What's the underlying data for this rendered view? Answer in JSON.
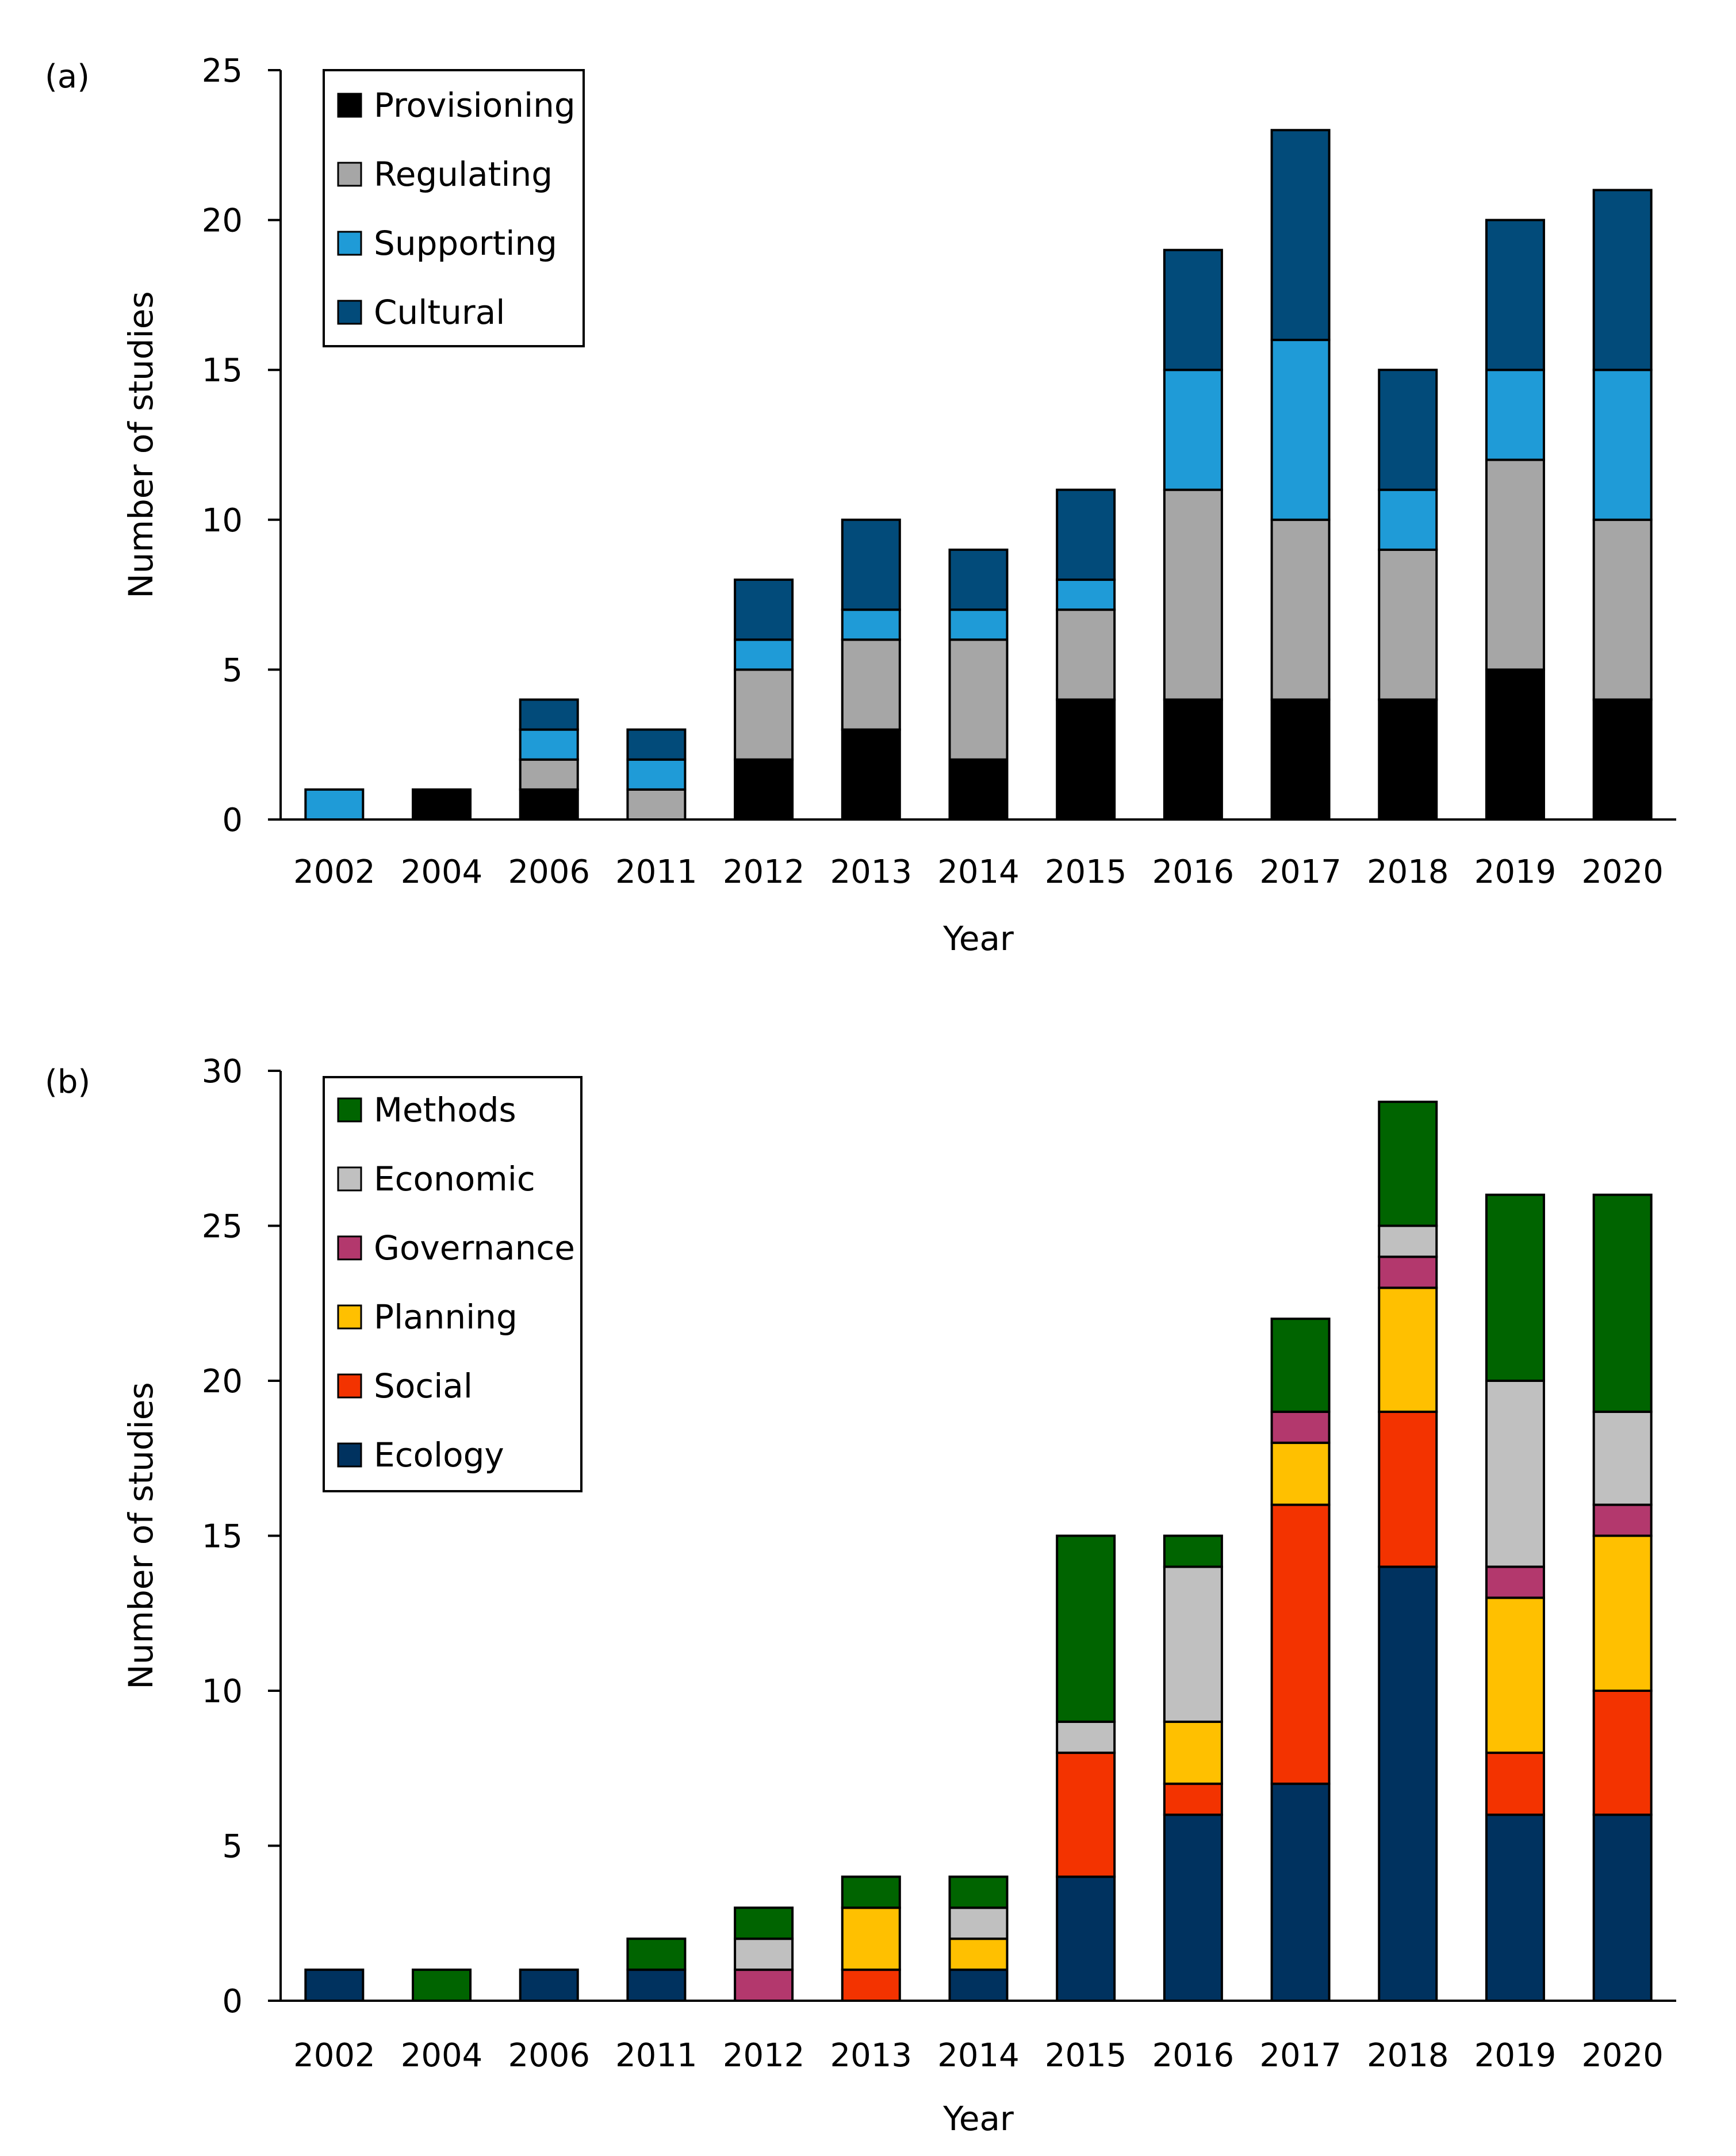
{
  "chart_data": [
    {
      "panel_label": "(a)",
      "type": "bar",
      "stacked": true,
      "title": "",
      "xlabel": "Year",
      "ylabel": "Number of studies",
      "ylim": [
        0,
        25
      ],
      "yticks": [
        0,
        5,
        10,
        15,
        20,
        25
      ],
      "grid": false,
      "legend_position": "top-left",
      "categories": [
        "2002",
        "2004",
        "2006",
        "2011",
        "2012",
        "2013",
        "2014",
        "2015",
        "2016",
        "2017",
        "2018",
        "2019",
        "2020"
      ],
      "series": [
        {
          "name": "Provisioning",
          "color": "#000000",
          "values": [
            0,
            1,
            1,
            0,
            2,
            3,
            2,
            4,
            4,
            4,
            4,
            5,
            4
          ]
        },
        {
          "name": "Regulating",
          "color": "#a6a6a6",
          "values": [
            0,
            0,
            1,
            1,
            3,
            3,
            4,
            3,
            7,
            6,
            5,
            7,
            6
          ]
        },
        {
          "name": "Supporting",
          "color": "#1f9bd7",
          "values": [
            1,
            0,
            1,
            1,
            1,
            1,
            1,
            1,
            4,
            6,
            2,
            3,
            5
          ]
        },
        {
          "name": "Cultural",
          "color": "#024b7a",
          "values": [
            0,
            0,
            1,
            1,
            2,
            3,
            2,
            3,
            4,
            7,
            4,
            5,
            6
          ]
        }
      ]
    },
    {
      "panel_label": "(b)",
      "type": "bar",
      "stacked": true,
      "title": "",
      "xlabel": "Year",
      "ylabel": "Number of studies",
      "ylim": [
        0,
        30
      ],
      "yticks": [
        0,
        5,
        10,
        15,
        20,
        25,
        30
      ],
      "grid": false,
      "legend_position": "top-left",
      "categories": [
        "2002",
        "2004",
        "2006",
        "2011",
        "2012",
        "2013",
        "2014",
        "2015",
        "2016",
        "2017",
        "2018",
        "2019",
        "2020"
      ],
      "series": [
        {
          "name": "Ecology",
          "color": "#00325f",
          "values": [
            1,
            0,
            1,
            1,
            0,
            0,
            1,
            4,
            6,
            7,
            14,
            6,
            6
          ]
        },
        {
          "name": "Social",
          "color": "#f33300",
          "values": [
            0,
            0,
            0,
            0,
            0,
            1,
            0,
            4,
            1,
            9,
            5,
            2,
            4
          ]
        },
        {
          "name": "Planning",
          "color": "#ffc000",
          "values": [
            0,
            0,
            0,
            0,
            0,
            2,
            1,
            0,
            2,
            2,
            4,
            5,
            5
          ]
        },
        {
          "name": "Governance",
          "color": "#b3386d",
          "values": [
            0,
            0,
            0,
            0,
            1,
            0,
            0,
            0,
            0,
            1,
            1,
            1,
            1
          ]
        },
        {
          "name": "Economic",
          "color": "#c0c0c0",
          "values": [
            0,
            0,
            0,
            0,
            1,
            0,
            1,
            1,
            5,
            0,
            1,
            6,
            3
          ]
        },
        {
          "name": "Methods",
          "color": "#006400",
          "values": [
            0,
            1,
            0,
            1,
            1,
            1,
            1,
            6,
            1,
            3,
            4,
            6,
            7
          ]
        }
      ],
      "legend_order": [
        "Methods",
        "Economic",
        "Governance",
        "Planning",
        "Social",
        "Ecology"
      ]
    }
  ]
}
